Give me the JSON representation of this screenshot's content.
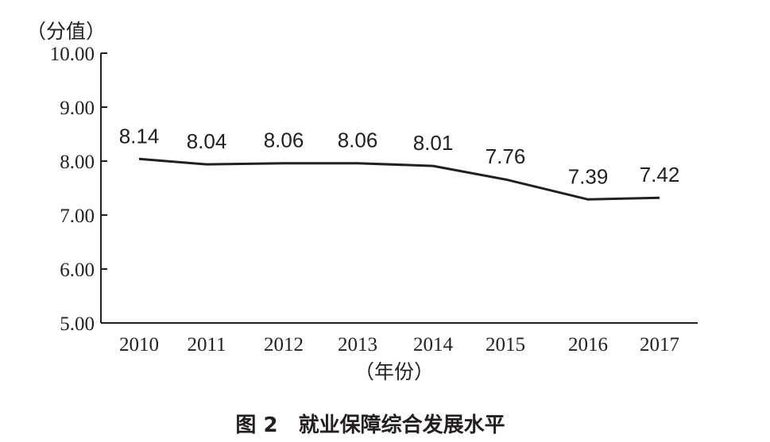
{
  "chart_data": {
    "type": "line",
    "categories": [
      "2010",
      "2011",
      "2012",
      "2013",
      "2014",
      "2015",
      "2016",
      "2017"
    ],
    "series": [
      {
        "values": [
          8.14,
          8.04,
          8.06,
          8.06,
          8.01,
          7.76,
          7.39,
          7.42
        ],
        "color": "#231f20"
      }
    ],
    "data_labels": [
      "8.14",
      "8.04",
      "8.06",
      "8.06",
      "8.01",
      "7.76",
      "7.39",
      "7.42"
    ],
    "y_ticks": [
      "5.00",
      "6.00",
      "7.00",
      "8.00",
      "9.00",
      "10.00"
    ],
    "ylim": [
      5,
      10
    ],
    "ylabel": "（分值）",
    "xlabel": "（年份）",
    "title": "图 2　就业保障综合发展水平",
    "grid": false,
    "legend": "none"
  }
}
